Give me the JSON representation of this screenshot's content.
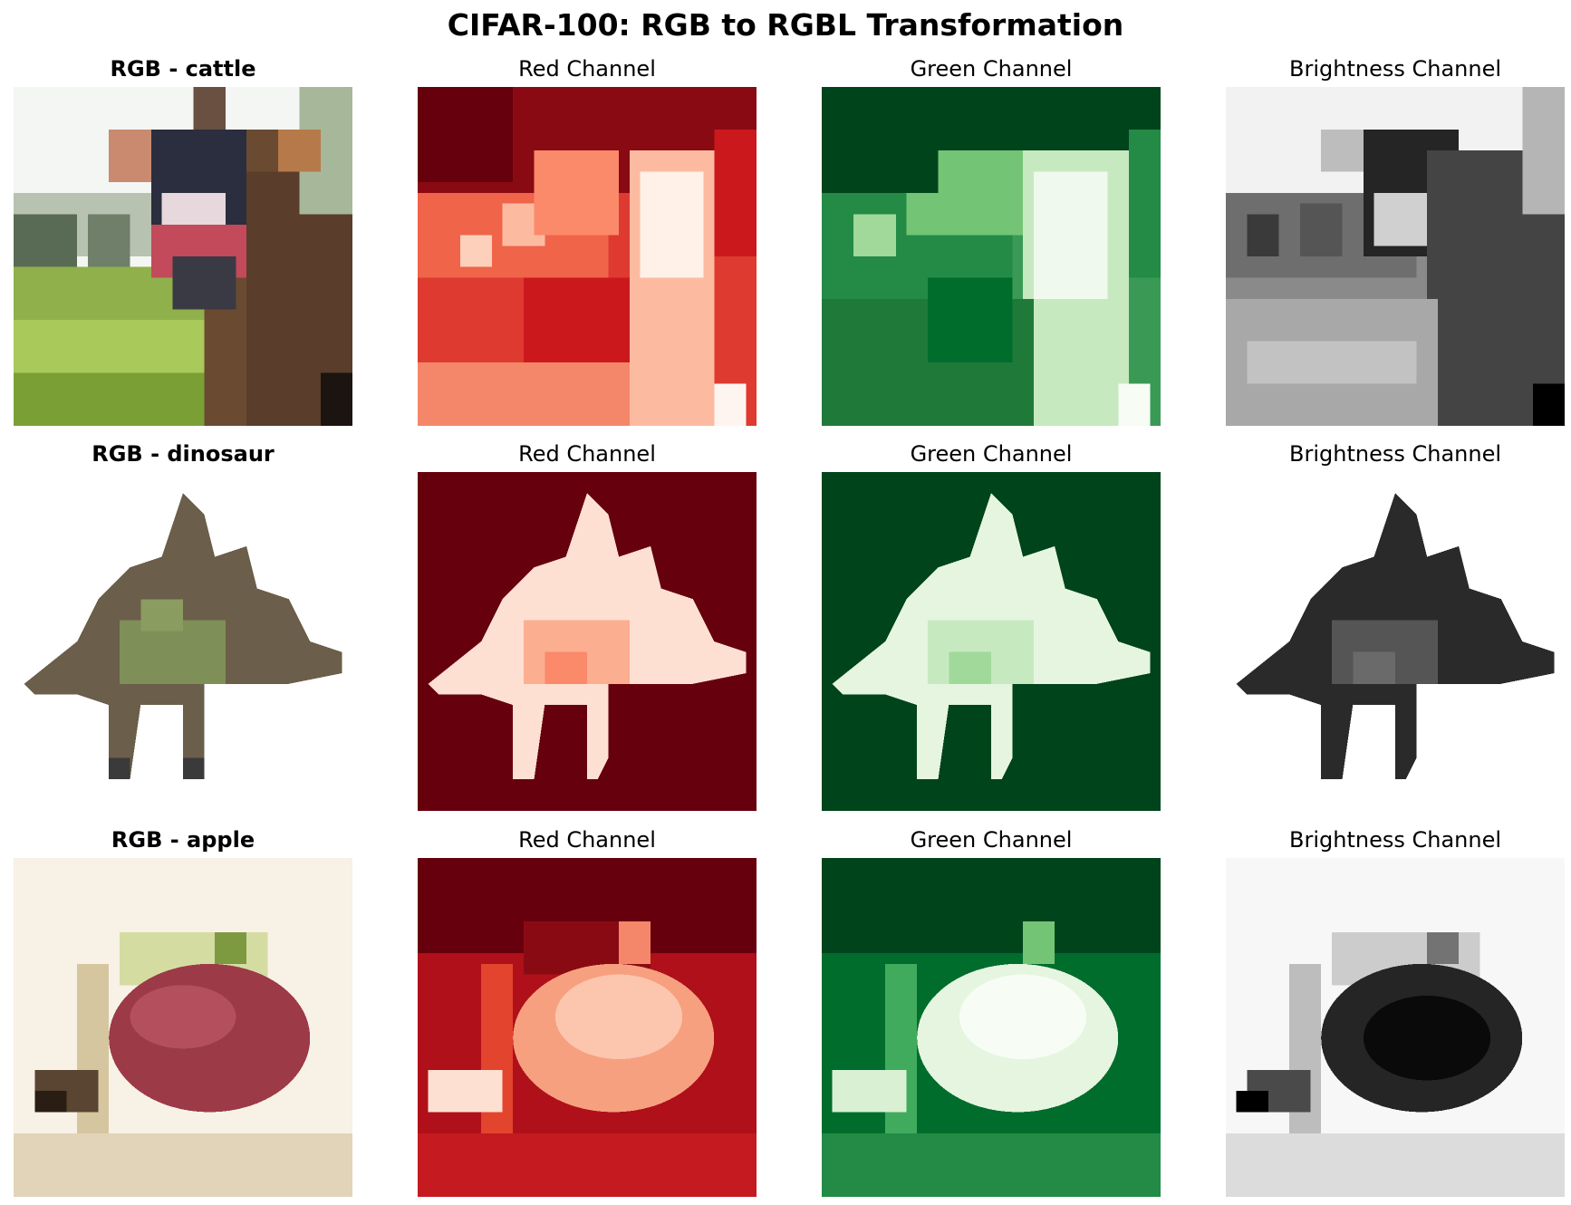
{
  "title": "CIFAR-100: RGB to RGBL Transformation",
  "rows": [
    {
      "label": "RGB - cattle",
      "panels": [
        "Red Channel",
        "Green Channel",
        "Brightness Channel"
      ]
    },
    {
      "label": "RGB - dinosaur",
      "panels": [
        "Red Channel",
        "Green Channel",
        "Brightness Channel"
      ]
    },
    {
      "label": "RGB - apple",
      "panels": [
        "Red Channel",
        "Green Channel",
        "Brightness Channel"
      ]
    }
  ],
  "colormaps": {
    "red": [
      "#fff5f0",
      "#fcbba1",
      "#fb6a4a",
      "#cb181d",
      "#67000d"
    ],
    "green": [
      "#f7fcf5",
      "#c7e9c0",
      "#74c476",
      "#238b45",
      "#00441b"
    ],
    "gray": [
      "#ffffff",
      "#bdbdbd",
      "#737373",
      "#252525",
      "#000000"
    ]
  }
}
